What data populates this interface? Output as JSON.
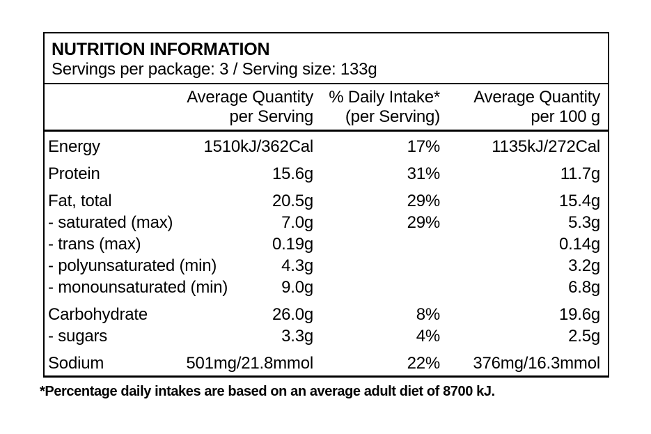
{
  "panel": {
    "title": "NUTRITION INFORMATION",
    "servings_line": "Servings per package: 3 / Serving size: 133g",
    "columns": {
      "per_serving_line1": "Average Quantity",
      "per_serving_line2": "per Serving",
      "daily_intake_line1": "% Daily Intake*",
      "daily_intake_line2": "(per Serving)",
      "per_100g_line1": "Average Quantity",
      "per_100g_line2": "per 100 g"
    },
    "rows": [
      {
        "label": "Energy",
        "per_serving": "1510kJ/362Cal",
        "daily_intake": "17%",
        "per_100g": "1135kJ/272Cal"
      },
      {
        "label": "Protein",
        "per_serving": "15.6g",
        "daily_intake": "31%",
        "per_100g": "11.7g"
      },
      {
        "label": "Fat, total",
        "per_serving": "20.5g",
        "daily_intake": "29%",
        "per_100g": "15.4g"
      },
      {
        "label": "- saturated (max)",
        "per_serving": "7.0g",
        "daily_intake": "29%",
        "per_100g": "5.3g"
      },
      {
        "label": "- trans (max)",
        "per_serving": "0.19g",
        "daily_intake": "",
        "per_100g": "0.14g"
      },
      {
        "label": "- polyunsaturated (min)",
        "per_serving": "4.3g",
        "daily_intake": "",
        "per_100g": "3.2g"
      },
      {
        "label": "- monounsaturated (min)",
        "per_serving": "9.0g",
        "daily_intake": "",
        "per_100g": "6.8g"
      },
      {
        "label": "Carbohydrate",
        "per_serving": "26.0g",
        "daily_intake": "8%",
        "per_100g": "19.6g"
      },
      {
        "label": "- sugars",
        "per_serving": "3.3g",
        "daily_intake": "4%",
        "per_100g": "2.5g"
      },
      {
        "label": "Sodium",
        "per_serving": "501mg/21.8mmol",
        "daily_intake": "22%",
        "per_100g": "376mg/16.3mmol"
      }
    ],
    "footnote": "*Percentage daily intakes are based on an average adult diet of 8700 kJ.",
    "colors": {
      "text": "#000000",
      "background": "#ffffff",
      "border": "#000000"
    }
  }
}
